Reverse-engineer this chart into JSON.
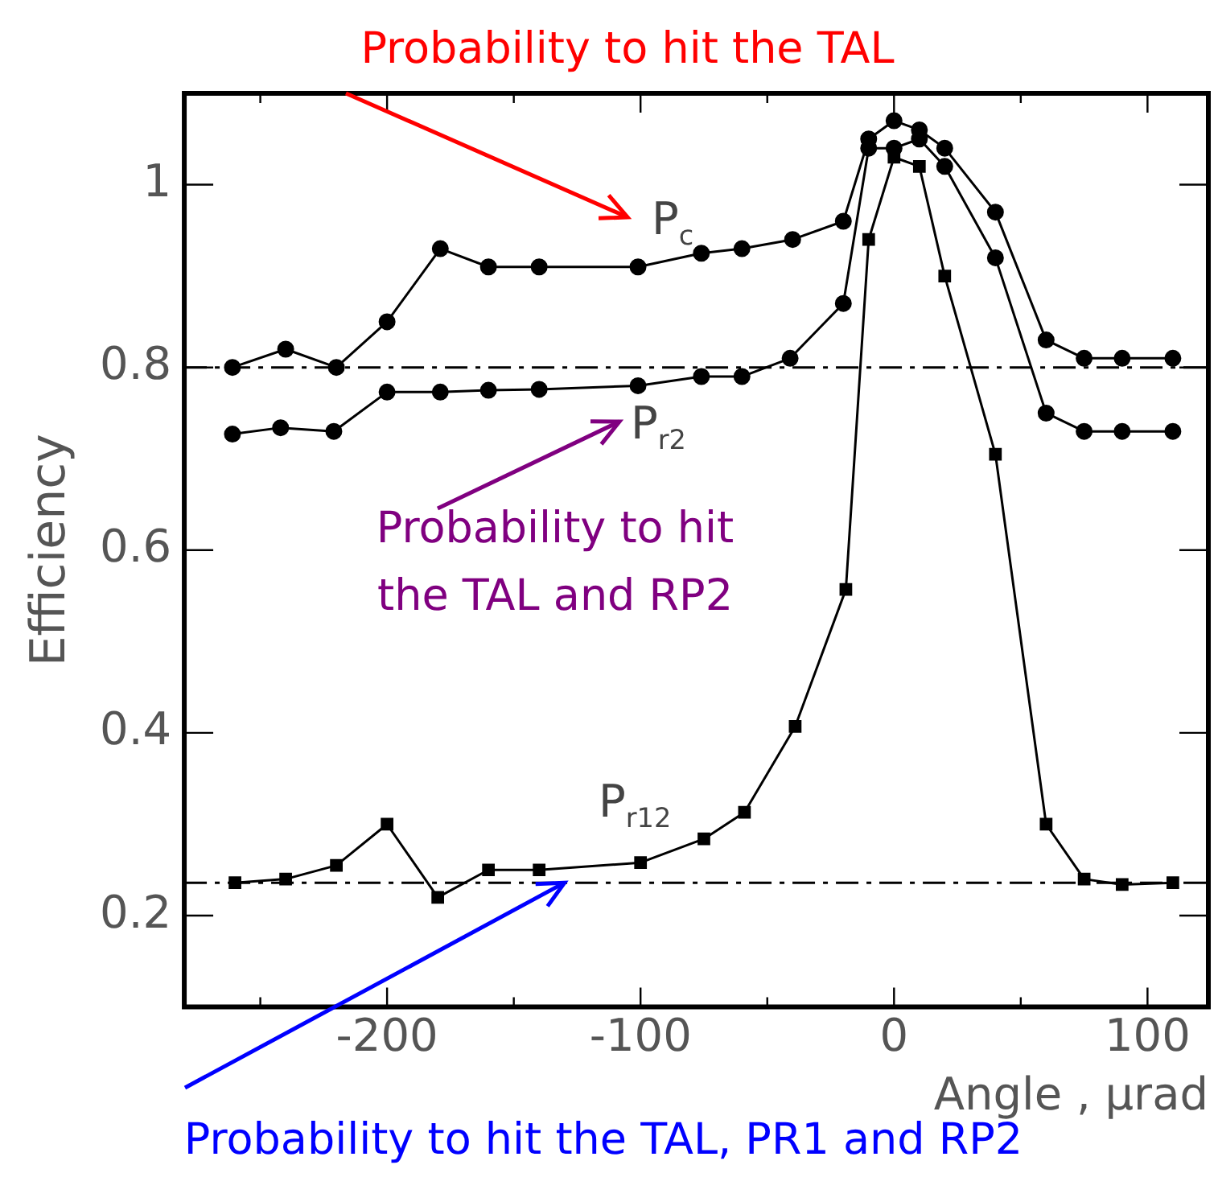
{
  "chart_data": {
    "type": "line",
    "xlabel": "Angle , μrad",
    "ylabel": "Efficiency",
    "xlim": [
      -280,
      124
    ],
    "ylim": [
      0.1,
      1.1
    ],
    "xticks": [
      {
        "value": -250,
        "label": null
      },
      -200,
      {
        "value": -150,
        "label": null
      },
      -100,
      {
        "value": -50,
        "label": null
      },
      0,
      {
        "value": 50,
        "label": null
      },
      100
    ],
    "yticks": [
      0.2,
      0.4,
      0.6,
      0.8,
      1
    ],
    "grid": false,
    "legend": false,
    "line_style": "solid",
    "series": [
      {
        "color": "#000000",
        "marker": "circle",
        "x": [
          -261,
          -240,
          -220,
          -200,
          -179,
          -160,
          -140,
          -101,
          -76,
          -60,
          -40,
          -20,
          -10,
          0,
          10,
          20,
          40,
          60,
          75,
          90,
          110
        ],
        "values": [
          0.8,
          0.82,
          0.8,
          0.85,
          0.93,
          0.91,
          0.91,
          0.91,
          0.925,
          0.93,
          0.94,
          0.96,
          1.05,
          1.07,
          1.06,
          1.04,
          0.97,
          0.83,
          0.81,
          0.81,
          0.81
        ]
      },
      {
        "color": "#000000",
        "marker": "circle",
        "x": [
          -261,
          -242,
          -221,
          -200,
          -179,
          -160,
          -140,
          -101,
          -76,
          -60,
          -41,
          -20,
          -10,
          0,
          10,
          20,
          40,
          60,
          75,
          90,
          110
        ],
        "values": [
          0.727,
          0.734,
          0.73,
          0.773,
          0.773,
          0.775,
          0.776,
          0.78,
          0.79,
          0.79,
          0.81,
          0.87,
          1.04,
          1.04,
          1.05,
          1.02,
          0.92,
          0.75,
          0.73,
          0.73,
          0.73
        ]
      },
      {
        "color": "#000000",
        "marker": "square",
        "x": [
          -260,
          -240,
          -220,
          -200,
          -180,
          -160,
          -140,
          -100,
          -75,
          -59,
          -39,
          -19,
          -10,
          0,
          10,
          20,
          40,
          60,
          75,
          90,
          110
        ],
        "values": [
          0.236,
          0.24,
          0.255,
          0.3,
          0.22,
          0.25,
          0.25,
          0.258,
          0.284,
          0.313,
          0.407,
          0.557,
          0.94,
          1.03,
          1.02,
          0.9,
          0.705,
          0.3,
          0.24,
          0.234,
          0.236
        ]
      }
    ],
    "ref_lines": [
      {
        "axis": "y",
        "value": 0.8,
        "line_style": "dashed",
        "color": "#000000"
      },
      {
        "axis": "y",
        "value": 0.236,
        "line_style": "dashed",
        "color": "#000000"
      }
    ],
    "annotations": [
      "Probability to hit the TAL",
      "Probability to hit\nthe TAL and RP2",
      {
        "text": "Probability to hit the TAL, PR1 and RP2",
        "x": -130,
        "y": 0.236
      },
      "P$_{c}$",
      "P$_{r2}$",
      "P$_{r12}$"
    ]
  }
}
